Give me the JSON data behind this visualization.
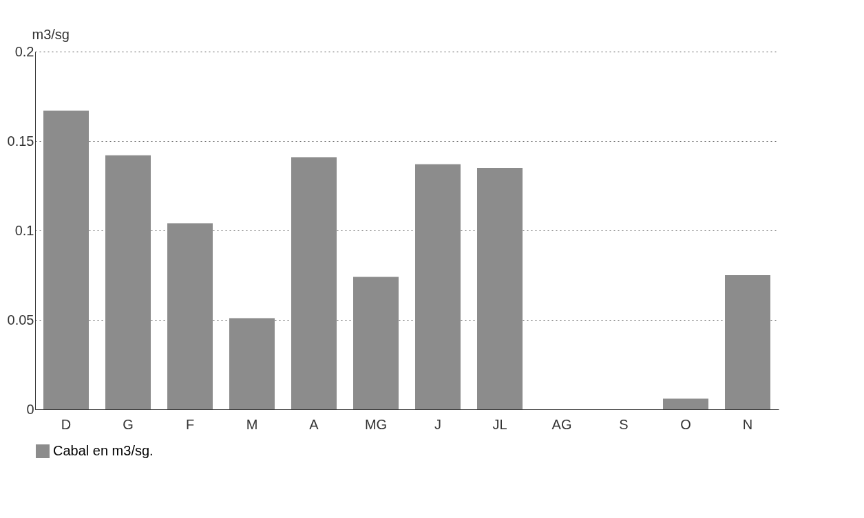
{
  "chart_data": {
    "type": "bar",
    "ylabel": "m3/sg",
    "categories": [
      "D",
      "G",
      "F",
      "M",
      "A",
      "MG",
      "J",
      "JL",
      "AG",
      "S",
      "O",
      "N"
    ],
    "series": [
      {
        "name": "Cabal en m3/sg.",
        "color": "#8c8c8c",
        "values": [
          0.167,
          0.142,
          0.104,
          0.051,
          0.141,
          0.074,
          0.137,
          0.135,
          0,
          0,
          0.006,
          0.075
        ]
      }
    ],
    "ylim": [
      0,
      0.2
    ],
    "yticks": [
      0,
      0.05,
      0.1,
      0.15,
      0.2
    ],
    "grid": "y",
    "legend": "bottom"
  }
}
